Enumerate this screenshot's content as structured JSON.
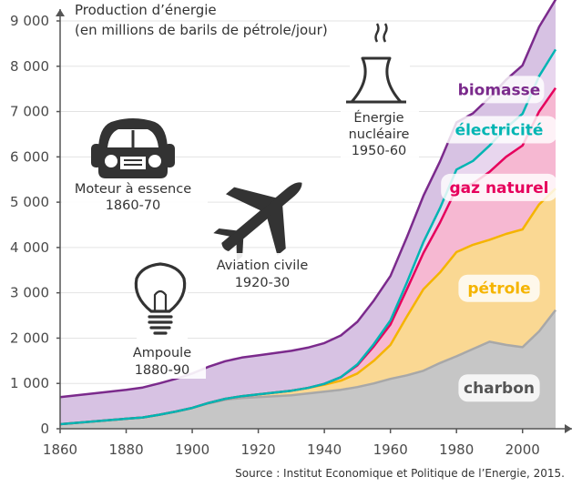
{
  "chart_data": {
    "type": "area",
    "stacked": true,
    "title": "",
    "ylabel_lines": [
      "Production d’énergie",
      "(en millions de barils de pétrole/jour)"
    ],
    "source": "Source : Institut Economique et Politique de l’Energie, 2015.",
    "xlim": [
      1860,
      2010
    ],
    "ylim": [
      0,
      9200
    ],
    "x_ticks": [
      1860,
      1880,
      1900,
      1920,
      1940,
      1960,
      1980,
      2000
    ],
    "y_ticks": [
      0,
      1000,
      2000,
      3000,
      4000,
      5000,
      6000,
      7000,
      8000,
      9000
    ],
    "y_tick_labels": [
      "0",
      "1 000",
      "2 000",
      "3 000",
      "4 000",
      "5 000",
      "6 000",
      "7 000",
      "8 000",
      "9 000"
    ],
    "x": [
      1860,
      1865,
      1870,
      1875,
      1880,
      1885,
      1890,
      1895,
      1900,
      1905,
      1910,
      1915,
      1920,
      1925,
      1930,
      1935,
      1940,
      1945,
      1950,
      1955,
      1960,
      1965,
      1970,
      1975,
      1980,
      1985,
      1990,
      1995,
      2000,
      2005,
      2010
    ],
    "series": [
      {
        "name": "charbon",
        "color": "#a8a8a8",
        "fill": "#c6c6c6",
        "values": [
          100,
          130,
          160,
          190,
          220,
          250,
          310,
          380,
          460,
          560,
          640,
          680,
          700,
          720,
          740,
          780,
          820,
          860,
          920,
          1000,
          1100,
          1180,
          1280,
          1450,
          1600,
          1760,
          1920,
          1850,
          1800,
          2150,
          2620
        ]
      },
      {
        "name": "pétrole",
        "color": "#f5b400",
        "fill": "#fad893",
        "values": [
          0,
          0,
          0,
          0,
          0,
          0,
          0,
          0,
          0,
          10,
          20,
          40,
          60,
          80,
          100,
          120,
          150,
          200,
          300,
          500,
          750,
          1300,
          1800,
          2000,
          2300,
          2300,
          2250,
          2450,
          2600,
          2800,
          2680
        ]
      },
      {
        "name": "gaz naturel",
        "color": "#e6005c",
        "fill": "#f6b8d2",
        "values": [
          0,
          0,
          0,
          0,
          0,
          0,
          0,
          0,
          0,
          0,
          0,
          0,
          0,
          0,
          0,
          0,
          20,
          80,
          180,
          320,
          450,
          600,
          800,
          1100,
          1400,
          1350,
          1500,
          1700,
          1850,
          2050,
          2220
        ]
      },
      {
        "name": "électricité",
        "color": "#00b5b3",
        "fill": "#e8d6ee",
        "values": [
          0,
          0,
          0,
          0,
          0,
          0,
          0,
          0,
          0,
          0,
          0,
          0,
          0,
          0,
          0,
          0,
          0,
          0,
          20,
          50,
          90,
          150,
          240,
          320,
          420,
          500,
          580,
          640,
          700,
          780,
          850
        ]
      },
      {
        "name": "biomasse",
        "color": "#7b2a8c",
        "fill": "#d7c2e3",
        "values": [
          600,
          610,
          620,
          630,
          640,
          660,
          690,
          720,
          760,
          800,
          830,
          850,
          860,
          870,
          880,
          890,
          900,
          920,
          940,
          960,
          980,
          1000,
          1020,
          1030,
          1040,
          1050,
          1060,
          1060,
          1070,
          1090,
          1100
        ]
      }
    ]
  },
  "annotations": {
    "nuclear": [
      "Énergie",
      "nucléaire",
      "1950-60"
    ],
    "car": [
      "Moteur à essence",
      "1860-70"
    ],
    "plane": [
      "Aviation civile",
      "1920-30"
    ],
    "bulb": [
      "Ampoule",
      "1880-90"
    ]
  },
  "icons": {
    "nuclear": "nuclear-plant-icon",
    "car": "car-icon",
    "plane": "airplane-icon",
    "bulb": "lightbulb-icon"
  }
}
